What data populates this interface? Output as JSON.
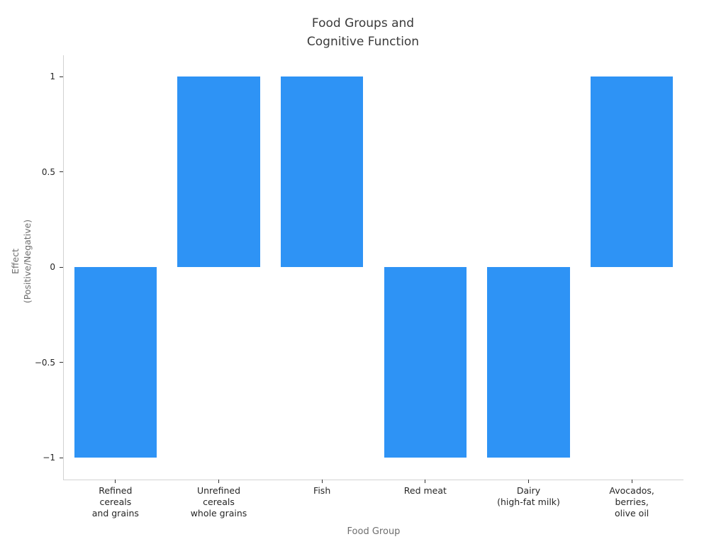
{
  "chart_data": {
    "type": "bar",
    "title": "Food Groups and\nCognitive Function",
    "xlabel": "Food Group",
    "ylabel": "Effect\n(Positive/Negative)",
    "categories": [
      "Refined\ncereals\nand grains",
      "Unrefined\ncereals\nwhole grains",
      "Fish",
      "Red meat",
      "Dairy\n(high-fat milk)",
      "Avocados,\nberries,\nolive oil"
    ],
    "values": [
      -1,
      1,
      1,
      -1,
      -1,
      1
    ],
    "ylim": [
      -1,
      1
    ],
    "yticks": [
      {
        "value": 1,
        "label": "1"
      },
      {
        "value": 0.5,
        "label": "0.5"
      },
      {
        "value": 0,
        "label": "0"
      },
      {
        "value": -0.5,
        "label": "−0.5"
      },
      {
        "value": -1,
        "label": "−1"
      }
    ],
    "bar_width_fraction": 0.8,
    "grid": false,
    "legend": null
  },
  "colors": {
    "background": "#ffffff",
    "bar": "#2e93f5",
    "axis_line": "#d2d2d2",
    "tick_mark": "#333333",
    "tick_label": "#262626",
    "axis_title": "#6e6e6e",
    "chart_title": "#3a3a3a"
  }
}
